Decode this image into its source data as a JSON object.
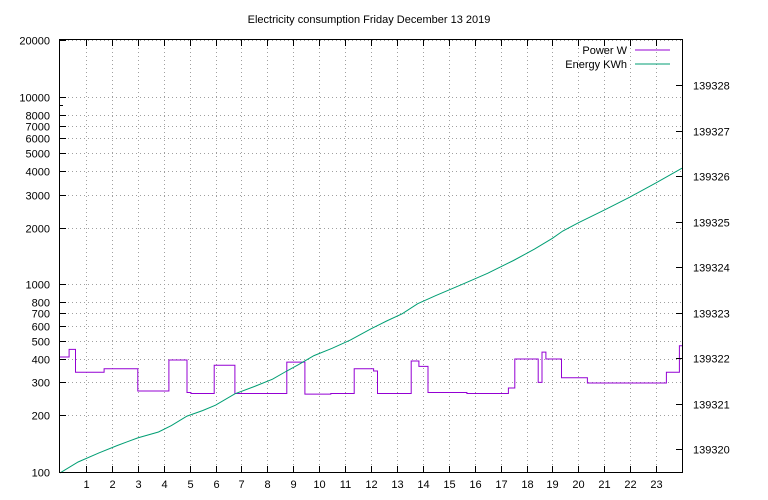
{
  "colors": {
    "power": "#9400d3",
    "energy": "#009e73"
  },
  "chart_data": {
    "type": "line",
    "title": "Electricity consumption Friday December 13 2019",
    "xlabel": "",
    "ylabel": "",
    "xlim": [
      0,
      24
    ],
    "ylim": [
      100,
      20000
    ],
    "y_scale": "log",
    "y2lim": [
      139319.5,
      139329
    ],
    "grid": true,
    "legend": "top-right",
    "x_ticks": [
      1,
      2,
      3,
      4,
      5,
      6,
      7,
      8,
      9,
      10,
      11,
      12,
      13,
      14,
      15,
      16,
      17,
      18,
      19,
      20,
      21,
      22,
      23
    ],
    "y_ticks": [
      {
        "v": 100,
        "label": "100"
      },
      {
        "v": 200,
        "label": "200"
      },
      {
        "v": 300,
        "label": "300"
      },
      {
        "v": 400,
        "label": "400"
      },
      {
        "v": 500,
        "label": "500"
      },
      {
        "v": 600,
        "label": "600"
      },
      {
        "v": 700,
        "label": "700"
      },
      {
        "v": 800,
        "label": "800"
      },
      {
        "v": 1000,
        "label": "1000"
      },
      {
        "v": 2000,
        "label": "2000"
      },
      {
        "v": 3000,
        "label": "3000"
      },
      {
        "v": 4000,
        "label": "4000"
      },
      {
        "v": 5000,
        "label": "5000"
      },
      {
        "v": 6000,
        "label": "6000"
      },
      {
        "v": 7000,
        "label": "7000"
      },
      {
        "v": 8000,
        "label": "8000"
      },
      {
        "v": 10000,
        "label": "10000"
      },
      {
        "v": 20000,
        "label": "20000"
      }
    ],
    "y2_ticks": [
      139320,
      139321,
      139322,
      139323,
      139324,
      139325,
      139326,
      139327,
      139328
    ],
    "series": [
      {
        "name": "Power W",
        "axis": "y",
        "step": true,
        "points": [
          [
            0.0,
            410
          ],
          [
            0.35,
            450
          ],
          [
            0.6,
            340
          ],
          [
            1.7,
            355
          ],
          [
            3.0,
            270
          ],
          [
            4.2,
            395
          ],
          [
            4.9,
            265
          ],
          [
            5.05,
            262
          ],
          [
            5.95,
            370
          ],
          [
            6.75,
            262
          ],
          [
            8.75,
            385
          ],
          [
            9.45,
            260
          ],
          [
            10.45,
            262
          ],
          [
            11.35,
            355
          ],
          [
            12.1,
            345
          ],
          [
            12.25,
            262
          ],
          [
            13.55,
            390
          ],
          [
            13.85,
            365
          ],
          [
            14.2,
            265
          ],
          [
            15.7,
            262
          ],
          [
            17.3,
            280
          ],
          [
            17.55,
            400
          ],
          [
            18.45,
            300
          ],
          [
            18.6,
            435
          ],
          [
            18.75,
            400
          ],
          [
            19.35,
            318
          ],
          [
            20.35,
            298
          ],
          [
            23.4,
            340
          ],
          [
            23.9,
            470
          ],
          [
            24.0,
            470
          ]
        ]
      },
      {
        "name": "Energy KWh",
        "axis": "y2",
        "step": false,
        "points": [
          [
            0.0,
            139319.48
          ],
          [
            0.7,
            139319.72
          ],
          [
            1.5,
            139319.92
          ],
          [
            2.2,
            139320.08
          ],
          [
            3.0,
            139320.25
          ],
          [
            3.8,
            139320.38
          ],
          [
            4.3,
            139320.52
          ],
          [
            4.9,
            139320.73
          ],
          [
            5.5,
            139320.85
          ],
          [
            6.0,
            139320.97
          ],
          [
            6.75,
            139321.22
          ],
          [
            7.5,
            139321.38
          ],
          [
            8.2,
            139321.54
          ],
          [
            8.75,
            139321.72
          ],
          [
            9.2,
            139321.86
          ],
          [
            9.8,
            139322.06
          ],
          [
            10.5,
            139322.22
          ],
          [
            11.2,
            139322.4
          ],
          [
            12.0,
            139322.65
          ],
          [
            12.6,
            139322.82
          ],
          [
            13.2,
            139322.98
          ],
          [
            13.8,
            139323.2
          ],
          [
            14.5,
            139323.38
          ],
          [
            15.5,
            139323.62
          ],
          [
            16.5,
            139323.87
          ],
          [
            17.5,
            139324.15
          ],
          [
            18.3,
            139324.4
          ],
          [
            19.0,
            139324.64
          ],
          [
            19.4,
            139324.8
          ],
          [
            20.0,
            139324.98
          ],
          [
            21.0,
            139325.26
          ],
          [
            22.0,
            139325.55
          ],
          [
            23.0,
            139325.86
          ],
          [
            24.0,
            139326.18
          ]
        ]
      }
    ]
  }
}
